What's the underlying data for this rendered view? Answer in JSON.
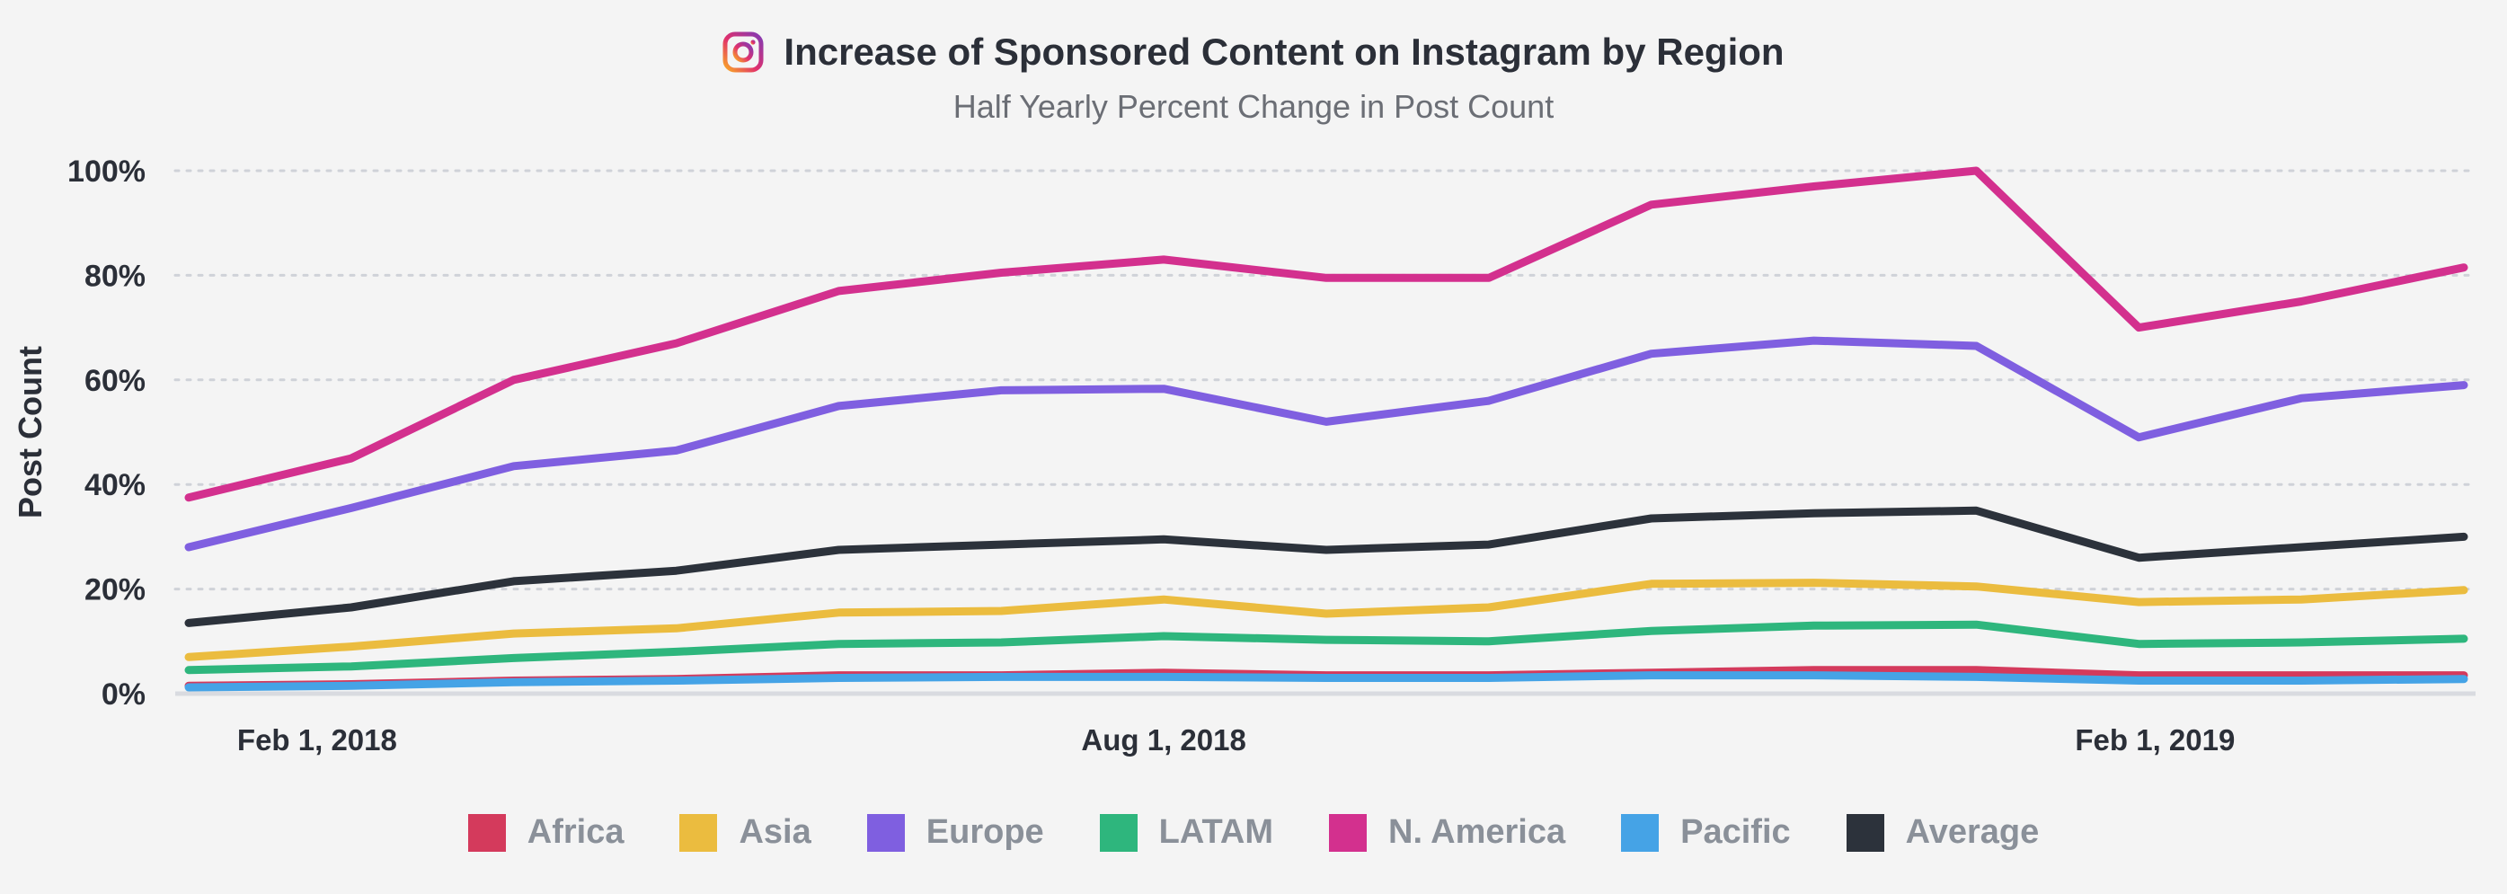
{
  "title": "Increase of Sponsored Content on Instagram by Region",
  "subtitle": "Half Yearly Percent Change in Post Count",
  "icon": "instagram-icon",
  "chart_data": {
    "type": "line",
    "title": "Increase of Sponsored Content on Instagram by Region",
    "subtitle": "Half Yearly Percent Change in Post Count",
    "ylabel": "Post Count",
    "xlabel": "",
    "ylim": [
      0,
      100
    ],
    "yticks": [
      "0%",
      "20%",
      "40%",
      "60%",
      "80%",
      "100%"
    ],
    "x_tick_labels": [
      "Feb 1, 2018",
      "Aug 1, 2018",
      "Feb 1, 2019"
    ],
    "grid": true,
    "legend_position": "bottom",
    "series": [
      {
        "name": "Africa",
        "color": "#d43a5c",
        "values": [
          1.5,
          1.8,
          2.5,
          2.8,
          3.5,
          3.5,
          4.0,
          3.5,
          3.5,
          4.0,
          4.5,
          4.5,
          3.5,
          3.5,
          3.5
        ]
      },
      {
        "name": "Asia",
        "color": "#ebbc3f",
        "values": [
          7.0,
          9.0,
          11.5,
          12.5,
          15.5,
          15.8,
          18.0,
          15.3,
          16.5,
          21.0,
          21.2,
          20.5,
          17.5,
          18.0,
          19.8
        ]
      },
      {
        "name": "Europe",
        "color": "#7f5fe0",
        "values": [
          28,
          35.5,
          43.5,
          46.5,
          55,
          58,
          58.3,
          52,
          56,
          65,
          67.5,
          66.5,
          49,
          56.5,
          59
        ]
      },
      {
        "name": "LATAM",
        "color": "#2eb67d",
        "values": [
          4.5,
          5.2,
          6.8,
          8.0,
          9.5,
          9.8,
          11.0,
          10.3,
          10.0,
          12.0,
          13.0,
          13.2,
          9.5,
          9.8,
          10.5
        ]
      },
      {
        "name": "N. America",
        "color": "#d3308e",
        "values": [
          37.5,
          45,
          60,
          67,
          77,
          80.5,
          83,
          79.5,
          79.5,
          93.5,
          97,
          100,
          70,
          75,
          81.5
        ]
      },
      {
        "name": "Pacific",
        "color": "#45a3e6",
        "values": [
          1.2,
          1.5,
          2.2,
          2.5,
          3.0,
          3.2,
          3.2,
          3.0,
          3.0,
          3.5,
          3.5,
          3.2,
          2.5,
          2.5,
          2.8
        ]
      },
      {
        "name": "Average",
        "color": "#2c323b",
        "values": [
          13.5,
          16.5,
          21.5,
          23.5,
          27.5,
          28.5,
          29.5,
          27.5,
          28.5,
          33.5,
          34.5,
          35.0,
          26.0,
          28.0,
          30.0
        ]
      }
    ],
    "x_count": 15
  }
}
